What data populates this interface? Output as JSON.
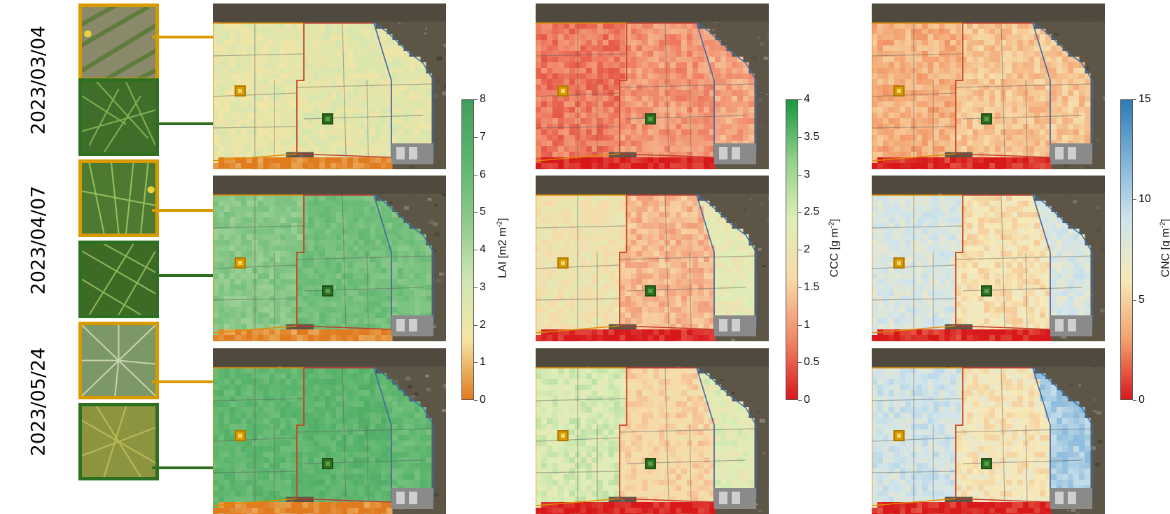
{
  "dates": [
    "2023/03/04",
    "2023/04/07",
    "2023/05/24"
  ],
  "colorbars": [
    {
      "id": "lai",
      "label": "LAI [m2 m",
      "label_sup": "-2",
      "label_end": "]",
      "ticks": [
        "8",
        "7",
        "6",
        "5",
        "4",
        "3",
        "2",
        "1",
        "0"
      ],
      "colors": [
        "#e07b1f",
        "#f5e5a5",
        "#cfe6b2",
        "#8cc98a",
        "#5bb56d",
        "#3f9f5c"
      ]
    },
    {
      "id": "ccc",
      "label": "CCC [g m",
      "label_sup": "-2",
      "label_end": "]",
      "ticks": [
        "4",
        "3.5",
        "3",
        "2.5",
        "2",
        "1.5",
        "1",
        "0.5",
        "0"
      ],
      "colors": [
        "#d7191c",
        "#f0876a",
        "#f8d9a8",
        "#dfeeb9",
        "#93cf8d",
        "#1a9641"
      ]
    },
    {
      "id": "cnc",
      "label": "CNC [g m",
      "label_sup": "-2",
      "label_end": "]",
      "ticks": [
        "15",
        "10",
        "5",
        "0"
      ],
      "colors": [
        "#d7191c",
        "#f3a06e",
        "#f7e9b8",
        "#cfe4ec",
        "#7fb3d8",
        "#2c7bb6"
      ]
    }
  ],
  "colors": {
    "orange_marker": "#d99a00",
    "green_marker": "#2e6f21",
    "field_boundary_red": "#c0392b",
    "field_boundary_blue": "#3a6fb0",
    "field_boundary_orange": "#e08a00"
  }
}
